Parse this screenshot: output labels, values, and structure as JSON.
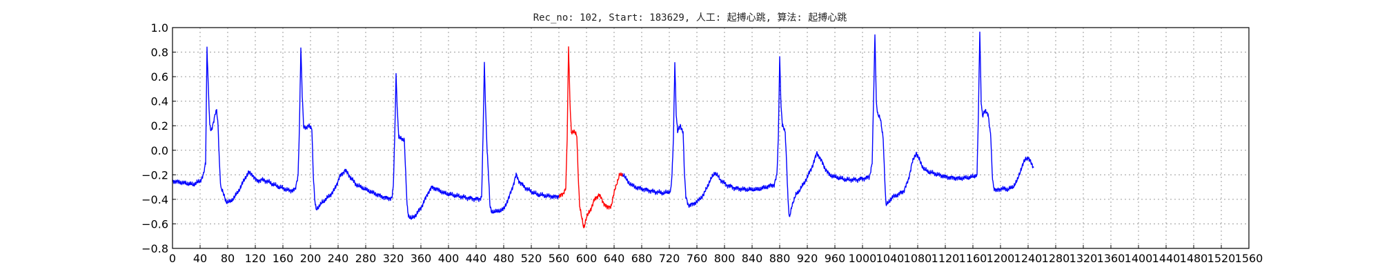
{
  "chart_data": {
    "type": "line",
    "title": "Rec_no: 102, Start: 183629, 人工: 起搏心跳, 算法: 起搏心跳",
    "xlabel": "",
    "ylabel": "",
    "xlim": [
      0,
      1560
    ],
    "ylim": [
      -0.8,
      1.0
    ],
    "yticks": [
      1.0,
      0.8,
      0.6,
      0.4,
      0.2,
      0.0,
      -0.2,
      -0.4,
      -0.6,
      -0.8
    ],
    "ytick_labels": [
      "1.0",
      "0.8",
      "0.6",
      "0.4",
      "0.2",
      "0.0",
      "−0.2",
      "−0.4",
      "−0.6",
      "−0.8"
    ],
    "xticks": [
      0,
      40,
      80,
      120,
      160,
      200,
      240,
      280,
      320,
      360,
      400,
      440,
      480,
      520,
      560,
      600,
      640,
      680,
      720,
      760,
      800,
      840,
      880,
      920,
      960,
      1000,
      1040,
      1080,
      1120,
      1160,
      1200,
      1240,
      1280,
      1320,
      1360,
      1400,
      1440,
      1480,
      1520,
      1560
    ],
    "xtick_labels": [
      "0",
      "40",
      "80",
      "120",
      "160",
      "200",
      "240",
      "280",
      "320",
      "360",
      "400",
      "440",
      "480",
      "520",
      "560",
      "600",
      "640",
      "680",
      "720",
      "760",
      "800",
      "840",
      "880",
      "920",
      "960",
      "1000",
      "1040",
      "1080",
      "1120",
      "1160",
      "1200",
      "1240",
      "1280",
      "1320",
      "1360",
      "1400",
      "1440",
      "1480",
      "1520",
      "1560"
    ],
    "grid": true,
    "signal_keypoints": [
      [
        0,
        -0.25
      ],
      [
        10,
        -0.26
      ],
      [
        20,
        -0.27
      ],
      [
        30,
        -0.28
      ],
      [
        40,
        -0.25
      ],
      [
        45,
        -0.2
      ],
      [
        48,
        -0.1
      ],
      [
        50,
        0.84
      ],
      [
        52,
        0.5
      ],
      [
        54,
        0.2
      ],
      [
        56,
        0.15
      ],
      [
        58,
        0.2
      ],
      [
        60,
        0.25
      ],
      [
        62,
        0.3
      ],
      [
        64,
        0.32
      ],
      [
        66,
        0.2
      ],
      [
        68,
        -0.1
      ],
      [
        70,
        -0.3
      ],
      [
        74,
        -0.36
      ],
      [
        78,
        -0.42
      ],
      [
        84,
        -0.42
      ],
      [
        90,
        -0.38
      ],
      [
        96,
        -0.33
      ],
      [
        104,
        -0.24
      ],
      [
        110,
        -0.18
      ],
      [
        116,
        -0.2
      ],
      [
        122,
        -0.25
      ],
      [
        130,
        -0.24
      ],
      [
        140,
        -0.26
      ],
      [
        150,
        -0.29
      ],
      [
        160,
        -0.31
      ],
      [
        170,
        -0.33
      ],
      [
        178,
        -0.32
      ],
      [
        182,
        -0.2
      ],
      [
        184,
        0.2
      ],
      [
        186,
        0.83
      ],
      [
        188,
        0.45
      ],
      [
        190,
        0.2
      ],
      [
        194,
        0.18
      ],
      [
        198,
        0.2
      ],
      [
        202,
        0.18
      ],
      [
        204,
        -0.2
      ],
      [
        206,
        -0.4
      ],
      [
        208,
        -0.48
      ],
      [
        212,
        -0.46
      ],
      [
        218,
        -0.42
      ],
      [
        226,
        -0.38
      ],
      [
        234,
        -0.33
      ],
      [
        242,
        -0.22
      ],
      [
        250,
        -0.16
      ],
      [
        258,
        -0.22
      ],
      [
        266,
        -0.28
      ],
      [
        280,
        -0.32
      ],
      [
        300,
        -0.37
      ],
      [
        310,
        -0.39
      ],
      [
        318,
        -0.39
      ],
      [
        320,
        -0.3
      ],
      [
        322,
        0.1
      ],
      [
        324,
        0.62
      ],
      [
        326,
        0.3
      ],
      [
        328,
        0.1
      ],
      [
        332,
        0.1
      ],
      [
        336,
        0.08
      ],
      [
        338,
        -0.2
      ],
      [
        340,
        -0.45
      ],
      [
        342,
        -0.53
      ],
      [
        346,
        -0.56
      ],
      [
        354,
        -0.52
      ],
      [
        362,
        -0.45
      ],
      [
        370,
        -0.35
      ],
      [
        376,
        -0.3
      ],
      [
        384,
        -0.32
      ],
      [
        394,
        -0.35
      ],
      [
        410,
        -0.37
      ],
      [
        430,
        -0.39
      ],
      [
        444,
        -0.4
      ],
      [
        448,
        -0.38
      ],
      [
        450,
        0.1
      ],
      [
        452,
        0.7
      ],
      [
        454,
        0.3
      ],
      [
        456,
        0.0
      ],
      [
        458,
        -0.2
      ],
      [
        460,
        -0.45
      ],
      [
        462,
        -0.5
      ],
      [
        470,
        -0.5
      ],
      [
        480,
        -0.48
      ],
      [
        488,
        -0.38
      ],
      [
        494,
        -0.28
      ],
      [
        498,
        -0.2
      ],
      [
        502,
        -0.25
      ],
      [
        510,
        -0.3
      ],
      [
        518,
        -0.33
      ],
      [
        528,
        -0.36
      ],
      [
        540,
        -0.37
      ],
      [
        556,
        -0.38
      ],
      [
        566,
        -0.36
      ],
      [
        570,
        -0.3
      ],
      [
        572,
        0.1
      ],
      [
        574,
        0.84
      ],
      [
        576,
        0.4
      ],
      [
        578,
        0.15
      ],
      [
        582,
        0.15
      ],
      [
        586,
        0.12
      ],
      [
        588,
        -0.2
      ],
      [
        590,
        -0.45
      ],
      [
        592,
        -0.52
      ],
      [
        596,
        -0.63
      ],
      [
        600,
        -0.55
      ],
      [
        606,
        -0.48
      ],
      [
        612,
        -0.4
      ],
      [
        618,
        -0.36
      ],
      [
        624,
        -0.42
      ],
      [
        630,
        -0.47
      ],
      [
        636,
        -0.45
      ],
      [
        642,
        -0.3
      ],
      [
        648,
        -0.2
      ],
      [
        654,
        -0.2
      ],
      [
        660,
        -0.26
      ],
      [
        670,
        -0.3
      ],
      [
        685,
        -0.32
      ],
      [
        700,
        -0.34
      ],
      [
        714,
        -0.35
      ],
      [
        722,
        -0.33
      ],
      [
        724,
        -0.2
      ],
      [
        726,
        0.1
      ],
      [
        728,
        0.72
      ],
      [
        730,
        0.3
      ],
      [
        732,
        0.15
      ],
      [
        736,
        0.2
      ],
      [
        740,
        0.15
      ],
      [
        742,
        -0.2
      ],
      [
        744,
        -0.38
      ],
      [
        748,
        -0.45
      ],
      [
        754,
        -0.44
      ],
      [
        762,
        -0.41
      ],
      [
        770,
        -0.36
      ],
      [
        778,
        -0.26
      ],
      [
        786,
        -0.18
      ],
      [
        794,
        -0.24
      ],
      [
        802,
        -0.28
      ],
      [
        816,
        -0.31
      ],
      [
        832,
        -0.32
      ],
      [
        848,
        -0.32
      ],
      [
        872,
        -0.28
      ],
      [
        876,
        -0.2
      ],
      [
        878,
        0.1
      ],
      [
        880,
        0.76
      ],
      [
        882,
        0.35
      ],
      [
        884,
        0.2
      ],
      [
        888,
        0.15
      ],
      [
        890,
        -0.1
      ],
      [
        892,
        -0.4
      ],
      [
        894,
        -0.56
      ],
      [
        898,
        -0.44
      ],
      [
        904,
        -0.36
      ],
      [
        912,
        -0.3
      ],
      [
        920,
        -0.22
      ],
      [
        928,
        -0.12
      ],
      [
        934,
        -0.02
      ],
      [
        940,
        -0.08
      ],
      [
        946,
        -0.15
      ],
      [
        952,
        -0.2
      ],
      [
        962,
        -0.22
      ],
      [
        976,
        -0.24
      ],
      [
        992,
        -0.24
      ],
      [
        1010,
        -0.22
      ],
      [
        1014,
        -0.1
      ],
      [
        1016,
        0.4
      ],
      [
        1018,
        0.94
      ],
      [
        1020,
        0.4
      ],
      [
        1022,
        0.3
      ],
      [
        1026,
        0.25
      ],
      [
        1030,
        0.1
      ],
      [
        1032,
        -0.2
      ],
      [
        1034,
        -0.45
      ],
      [
        1038,
        -0.42
      ],
      [
        1044,
        -0.38
      ],
      [
        1052,
        -0.36
      ],
      [
        1060,
        -0.33
      ],
      [
        1066,
        -0.25
      ],
      [
        1072,
        -0.1
      ],
      [
        1078,
        -0.02
      ],
      [
        1084,
        -0.1
      ],
      [
        1090,
        -0.16
      ],
      [
        1098,
        -0.18
      ],
      [
        1110,
        -0.2
      ],
      [
        1124,
        -0.22
      ],
      [
        1140,
        -0.23
      ],
      [
        1158,
        -0.22
      ],
      [
        1166,
        -0.2
      ],
      [
        1168,
        0.3
      ],
      [
        1170,
        0.97
      ],
      [
        1172,
        0.4
      ],
      [
        1174,
        0.28
      ],
      [
        1178,
        0.32
      ],
      [
        1182,
        0.3
      ],
      [
        1186,
        0.1
      ],
      [
        1188,
        -0.2
      ],
      [
        1190,
        -0.3
      ],
      [
        1194,
        -0.33
      ],
      [
        1202,
        -0.31
      ],
      [
        1210,
        -0.32
      ],
      [
        1218,
        -0.3
      ],
      [
        1224,
        -0.25
      ],
      [
        1230,
        -0.15
      ],
      [
        1236,
        -0.07
      ],
      [
        1240,
        -0.06
      ],
      [
        1244,
        -0.1
      ],
      [
        1248,
        -0.14
      ]
    ],
    "series": [
      {
        "color": "#0000ff",
        "ranges": [
          [
            0,
            560
          ],
          [
            652,
            1248
          ]
        ]
      },
      {
        "color": "#ff0000",
        "ranges": [
          [
            560,
            652
          ]
        ]
      }
    ]
  }
}
